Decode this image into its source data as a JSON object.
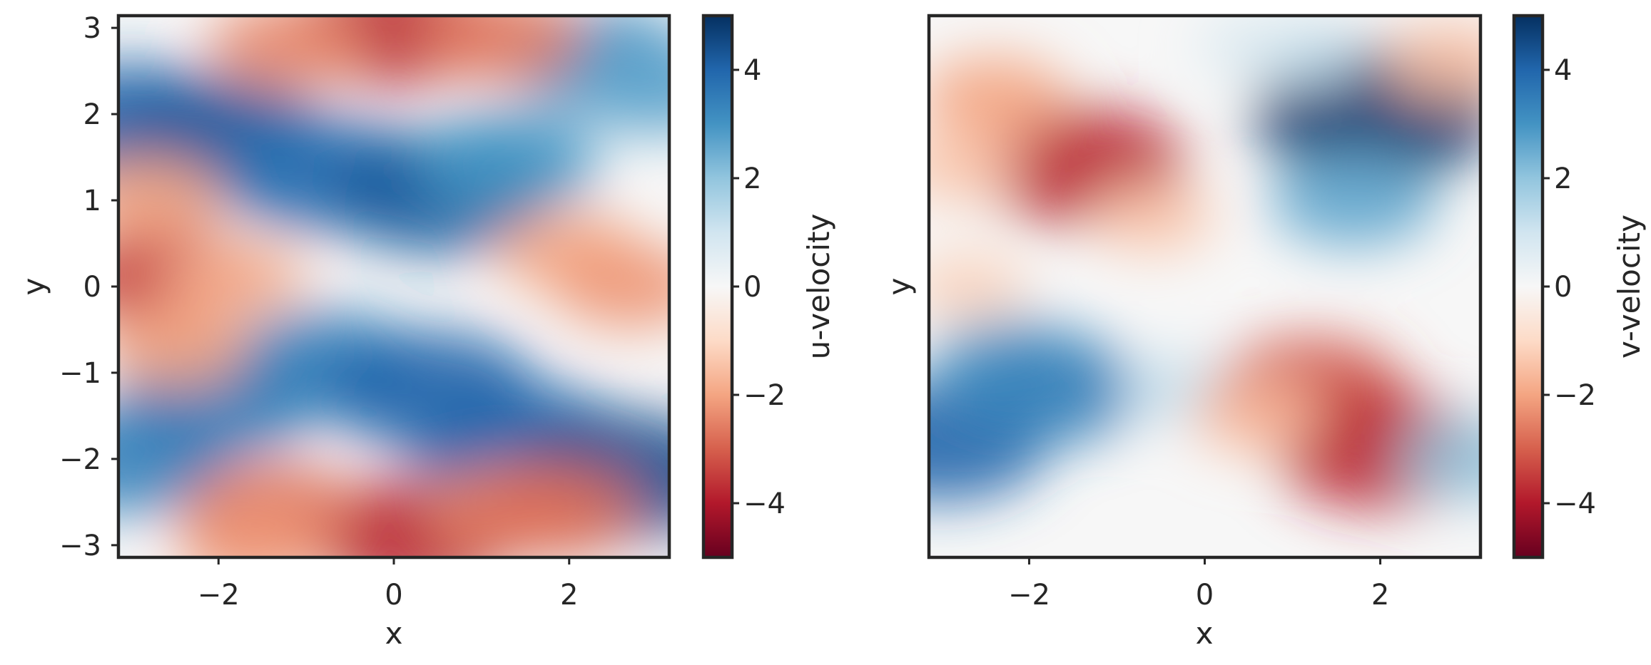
{
  "chart_data": [
    {
      "type": "heatmap",
      "title": "",
      "xlabel": "x",
      "ylabel": "y",
      "xlim": [
        -3.1416,
        3.1416
      ],
      "ylim": [
        -3.1416,
        3.1416
      ],
      "x_ticks": [
        -2,
        0,
        2
      ],
      "x_tick_labels": [
        "−2",
        "0",
        "2"
      ],
      "y_ticks": [
        3,
        2,
        1,
        0,
        -1,
        -2,
        -3
      ],
      "y_tick_labels": [
        "3",
        "2",
        "1",
        "0",
        "−1",
        "−2",
        "−3"
      ],
      "colorbar": {
        "label": "u-velocity",
        "range": [
          -5,
          5
        ],
        "ticks": [
          4,
          2,
          0,
          -2,
          -4
        ],
        "tick_labels": [
          "4",
          "2",
          "0",
          "−2",
          "−4"
        ],
        "colormap": "RdBu"
      },
      "features": [
        {
          "x": -3.0,
          "y": 1.9,
          "value": 4.0
        },
        {
          "x": -2.0,
          "y": 1.7,
          "value": 4.2
        },
        {
          "x": -0.8,
          "y": 1.3,
          "value": 3.8
        },
        {
          "x": 0.5,
          "y": 1.1,
          "value": 4.2
        },
        {
          "x": 1.3,
          "y": 1.45,
          "value": 3.0
        },
        {
          "x": 2.4,
          "y": 2.6,
          "value": 3.2
        },
        {
          "x": 3.0,
          "y": 2.3,
          "value": 2.6
        },
        {
          "x": -3.0,
          "y": -2.0,
          "value": 3.4
        },
        {
          "x": -2.0,
          "y": -1.3,
          "value": 3.6
        },
        {
          "x": -0.8,
          "y": -0.9,
          "value": 3.4
        },
        {
          "x": 0.4,
          "y": -1.2,
          "value": 4.0
        },
        {
          "x": 1.4,
          "y": -1.8,
          "value": 4.0
        },
        {
          "x": 2.6,
          "y": -2.2,
          "value": 4.4
        },
        {
          "x": 0.0,
          "y": 3.0,
          "value": -3.8
        },
        {
          "x": -1.2,
          "y": 2.8,
          "value": -2.4
        },
        {
          "x": 1.2,
          "y": 2.9,
          "value": -2.6
        },
        {
          "x": -2.6,
          "y": 0.1,
          "value": -3.4
        },
        {
          "x": -1.8,
          "y": 0.1,
          "value": -1.8
        },
        {
          "x": -2.5,
          "y": -0.7,
          "value": -2.0
        },
        {
          "x": -2.8,
          "y": 1.05,
          "value": -2.0
        },
        {
          "x": 2.0,
          "y": 0.4,
          "value": -2.0
        },
        {
          "x": 2.7,
          "y": 0.0,
          "value": -2.2
        },
        {
          "x": 0.2,
          "y": -2.9,
          "value": -3.8
        },
        {
          "x": -1.4,
          "y": -2.6,
          "value": -2.8
        },
        {
          "x": 1.3,
          "y": -2.6,
          "value": -2.4
        },
        {
          "x": 1.8,
          "y": -2.6,
          "value": -2.8
        },
        {
          "x": -1.6,
          "y": -3.0,
          "value": -2.2
        }
      ]
    },
    {
      "type": "heatmap",
      "title": "",
      "xlabel": "x",
      "ylabel": "y",
      "xlim": [
        -3.1416,
        3.1416
      ],
      "ylim": [
        -3.1416,
        3.1416
      ],
      "x_ticks": [
        -2,
        0,
        2
      ],
      "x_tick_labels": [
        "−2",
        "0",
        "2"
      ],
      "colorbar": {
        "label": "v-velocity",
        "range": [
          -5,
          5
        ],
        "ticks": [
          4,
          2,
          0,
          -2,
          -4
        ],
        "tick_labels": [
          "4",
          "2",
          "0",
          "−2",
          "−4"
        ],
        "colormap": "RdBu"
      },
      "features": [
        {
          "x": -1.4,
          "y": 1.4,
          "value": -3.8
        },
        {
          "x": -2.4,
          "y": 2.2,
          "value": -2.0
        },
        {
          "x": -0.6,
          "y": 0.8,
          "value": -1.4
        },
        {
          "x": -2.8,
          "y": 1.4,
          "value": -1.4
        },
        {
          "x": 1.95,
          "y": 2.0,
          "value": 4.8
        },
        {
          "x": 1.7,
          "y": 1.0,
          "value": 2.6
        },
        {
          "x": 1.1,
          "y": 2.7,
          "value": 1.2
        },
        {
          "x": -3.0,
          "y": -1.8,
          "value": 4.0
        },
        {
          "x": -2.2,
          "y": -0.9,
          "value": 2.6
        },
        {
          "x": -1.8,
          "y": -1.2,
          "value": 3.4
        },
        {
          "x": -0.3,
          "y": -1.2,
          "value": 1.2
        },
        {
          "x": 1.2,
          "y": -1.2,
          "value": -3.2
        },
        {
          "x": 2.0,
          "y": -1.9,
          "value": -3.8
        },
        {
          "x": 0.6,
          "y": -1.5,
          "value": -1.6
        },
        {
          "x": 2.8,
          "y": 2.6,
          "value": -1.6
        },
        {
          "x": 3.05,
          "y": -2.0,
          "value": 2.0
        },
        {
          "x": 0.5,
          "y": 2.8,
          "value": 0.8
        },
        {
          "x": -2.7,
          "y": 0.0,
          "value": -1.2
        }
      ]
    }
  ]
}
